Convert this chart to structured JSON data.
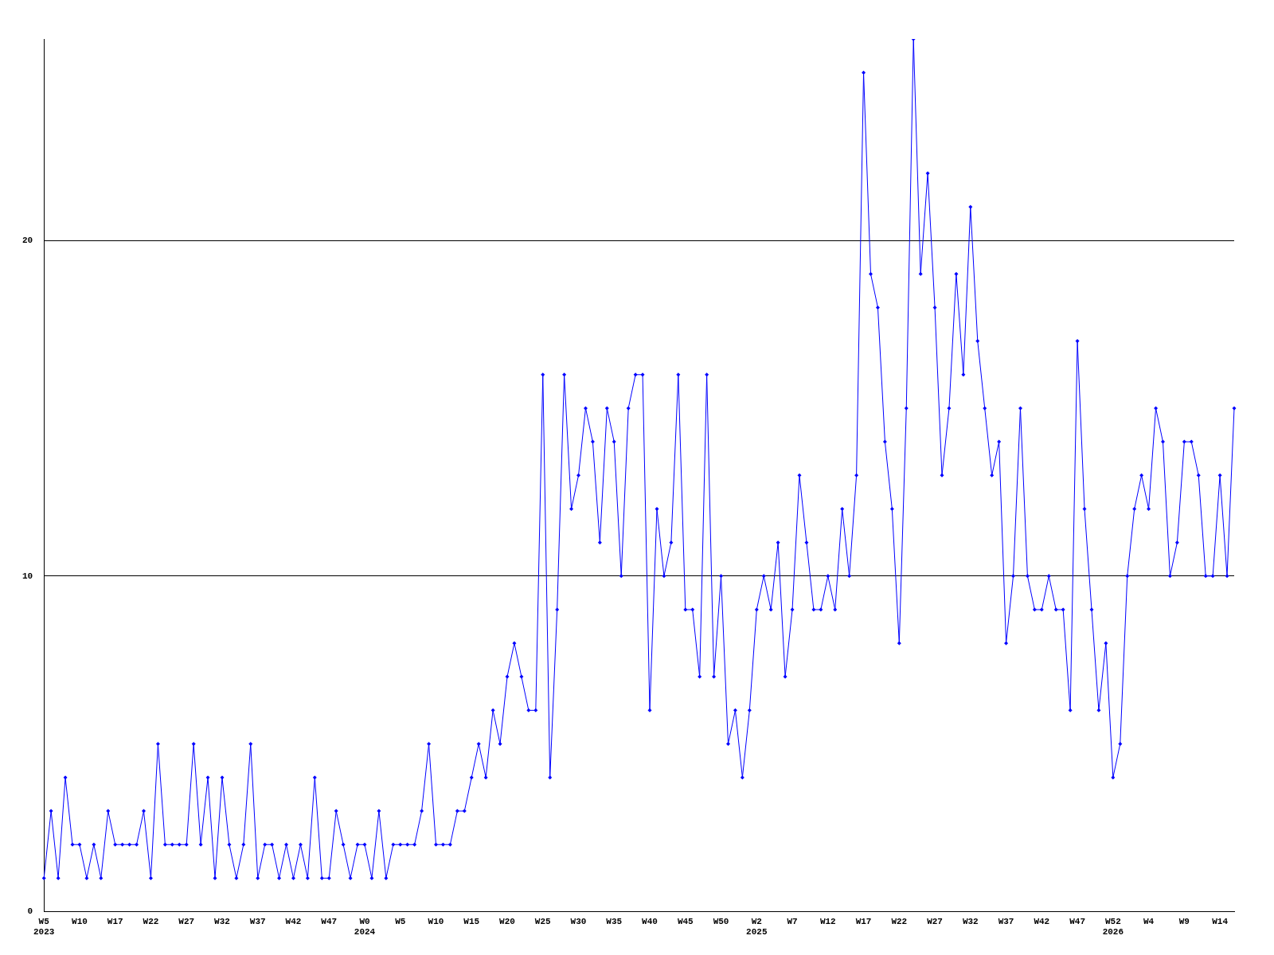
{
  "chart_data": {
    "type": "line",
    "categories": [
      "W5\n2023",
      null,
      null,
      null,
      null,
      "W10",
      null,
      null,
      null,
      null,
      "W17",
      null,
      null,
      null,
      null,
      "W22",
      null,
      null,
      null,
      null,
      "W27",
      null,
      null,
      null,
      null,
      "W32",
      null,
      null,
      null,
      null,
      "W37",
      null,
      null,
      null,
      null,
      "W42",
      null,
      null,
      null,
      null,
      "W47",
      null,
      null,
      null,
      null,
      "W0\n2024",
      null,
      null,
      null,
      null,
      "W5",
      null,
      null,
      null,
      null,
      "W10",
      null,
      null,
      null,
      null,
      "W15",
      null,
      null,
      null,
      null,
      "W20",
      null,
      null,
      null,
      null,
      "W25",
      null,
      null,
      null,
      null,
      "W30",
      null,
      null,
      null,
      null,
      "W35",
      null,
      null,
      null,
      null,
      "W40",
      null,
      null,
      null,
      null,
      "W45",
      null,
      null,
      null,
      null,
      "W50",
      null,
      null,
      null,
      null,
      "W2\n2025",
      null,
      null,
      null,
      null,
      "W7",
      null,
      null,
      null,
      null,
      "W12",
      null,
      null,
      null,
      null,
      "W17",
      null,
      null,
      null,
      null,
      "W22",
      null,
      null,
      null,
      null,
      "W27",
      null,
      null,
      null,
      null,
      "W32",
      null,
      null,
      null,
      null,
      "W37",
      null,
      null,
      null,
      null,
      "W42",
      null,
      null,
      null,
      null,
      "W47",
      null,
      null,
      null,
      null,
      "W52\n2026",
      null,
      null,
      null,
      null,
      "W4",
      null,
      null,
      null,
      null,
      "W9",
      null,
      null,
      null,
      null,
      "W14",
      null,
      null
    ],
    "series": [
      {
        "color": "#0000ff",
        "values": [
          1,
          3,
          1,
          4,
          2,
          2,
          1,
          2,
          1,
          3,
          2,
          2,
          2,
          2,
          3,
          1,
          5,
          2,
          2,
          2,
          2,
          5,
          2,
          4,
          1,
          4,
          2,
          1,
          2,
          5,
          1,
          2,
          2,
          1,
          2,
          1,
          2,
          1,
          4,
          1,
          1,
          3,
          2,
          1,
          2,
          2,
          1,
          3,
          1,
          2,
          2,
          2,
          2,
          3,
          5,
          2,
          2,
          2,
          3,
          3,
          4,
          5,
          4,
          6,
          5,
          7,
          8,
          7,
          6,
          6,
          16,
          4,
          9,
          16,
          12,
          13,
          15,
          14,
          11,
          15,
          14,
          10,
          15,
          16,
          16,
          6,
          12,
          10,
          11,
          16,
          9,
          9,
          7,
          16,
          7,
          10,
          5,
          6,
          4,
          6,
          9,
          10,
          9,
          11,
          7,
          9,
          13,
          11,
          9,
          9,
          10,
          9,
          12,
          10,
          13,
          25,
          19,
          18,
          14,
          12,
          8,
          15,
          26,
          19,
          22,
          18,
          13,
          15,
          19,
          16,
          21,
          17,
          15,
          13,
          14,
          8,
          10,
          15,
          10,
          9,
          9,
          10,
          9,
          9,
          6,
          17,
          12,
          9,
          6,
          8,
          4,
          5,
          10,
          12,
          13,
          12,
          15,
          14,
          10,
          11,
          14,
          14,
          13,
          10,
          10,
          13,
          10,
          15
        ]
      }
    ],
    "ylim": [
      0,
      26
    ],
    "yticks": [
      0,
      10,
      20
    ],
    "grid": "y",
    "legend": false,
    "marker": "diamond",
    "line_style": "solid"
  }
}
